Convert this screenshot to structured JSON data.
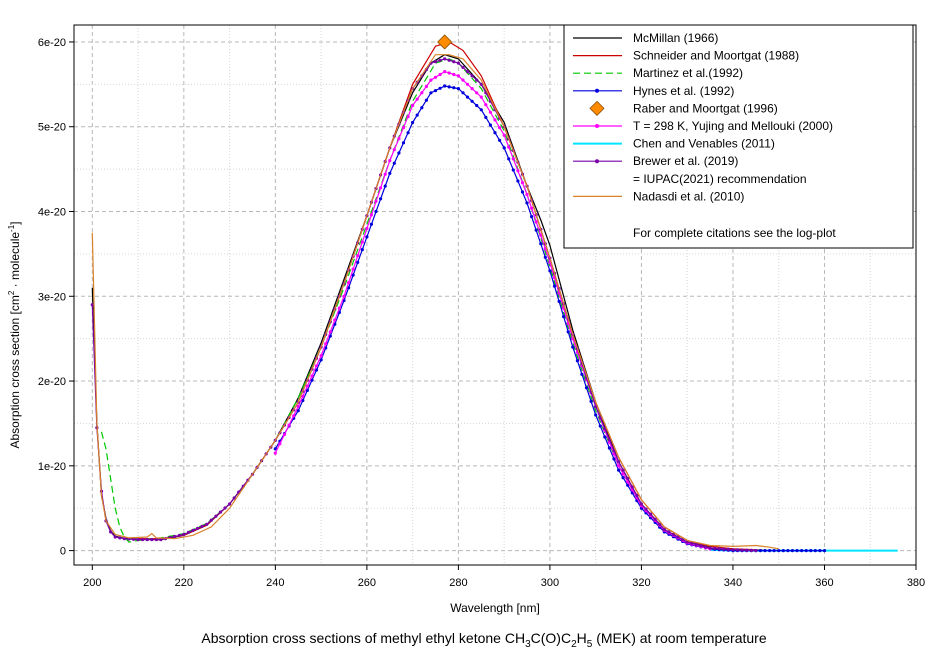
{
  "chart_data": {
    "type": "line",
    "title": "Absorption cross sections of methyl ethyl ketone CH3C(O)C2H5 (MEK) at room temperature",
    "title_parts": {
      "pre": "Absorption cross sections of methyl ethyl ketone CH",
      "s1": "3",
      "mid1": "C(O)C",
      "s2": "2",
      "mid2": "H",
      "s3": "5",
      "post": " (MEK) at room temperature"
    },
    "xlabel": "Wavelength [nm]",
    "ylabel": "Absorption cross section [cm2 · molecule-1]",
    "ylabel_parts": {
      "pre": "Absorption cross section [cm",
      "sup1": "2",
      "mid": " · molecule",
      "sup2": "-1",
      "post": "]"
    },
    "xlim": [
      196,
      380
    ],
    "ylim": [
      -1.7e-21,
      6.2e-20
    ],
    "x_ticks": [
      {
        "v": 200,
        "l": "200"
      },
      {
        "v": 220,
        "l": "220"
      },
      {
        "v": 240,
        "l": "240"
      },
      {
        "v": 260,
        "l": "260"
      },
      {
        "v": 280,
        "l": "280"
      },
      {
        "v": 300,
        "l": "300"
      },
      {
        "v": 320,
        "l": "320"
      },
      {
        "v": 340,
        "l": "340"
      },
      {
        "v": 360,
        "l": "360"
      },
      {
        "v": 380,
        "l": "380"
      }
    ],
    "y_ticks": [
      {
        "v": 0,
        "l": "0"
      },
      {
        "v": 1e-20,
        "l": "1e-20"
      },
      {
        "v": 2e-20,
        "l": "2e-20"
      },
      {
        "v": 3e-20,
        "l": "3e-20"
      },
      {
        "v": 4e-20,
        "l": "4e-20"
      },
      {
        "v": 5e-20,
        "l": "5e-20"
      },
      {
        "v": 6e-20,
        "l": "6e-20"
      }
    ],
    "grid": true,
    "legend_position": "top-right",
    "legend_note": "For complete citations see the log-plot",
    "series": [
      {
        "name": "McMillan (1966)",
        "color": "#000000",
        "style": "solid",
        "marker": "none",
        "points": [
          [
            200,
            3.1e-20
          ],
          [
            201,
            1.5e-20
          ],
          [
            202,
            6.5e-21
          ],
          [
            203,
            3.8e-21
          ],
          [
            204,
            2.3e-21
          ],
          [
            205,
            1.7e-21
          ],
          [
            207,
            1.45e-21
          ],
          [
            210,
            1.35e-21
          ],
          [
            215,
            1.3e-21
          ],
          [
            220,
            1.8e-21
          ],
          [
            225,
            3e-21
          ],
          [
            230,
            5.5e-21
          ],
          [
            235,
            9e-21
          ],
          [
            240,
            1.3e-20
          ],
          [
            245,
            1.8e-20
          ],
          [
            250,
            2.45e-20
          ],
          [
            255,
            3.2e-20
          ],
          [
            260,
            3.95e-20
          ],
          [
            265,
            4.75e-20
          ],
          [
            270,
            5.4e-20
          ],
          [
            274,
            5.75e-20
          ],
          [
            277,
            5.85e-20
          ],
          [
            280,
            5.8e-20
          ],
          [
            285,
            5.5e-20
          ],
          [
            290,
            5.05e-20
          ],
          [
            295,
            4.3e-20
          ],
          [
            298,
            3.9e-20
          ],
          [
            300,
            3.6e-20
          ],
          [
            305,
            2.6e-20
          ],
          [
            310,
            1.75e-20
          ],
          [
            315,
            1.05e-20
          ],
          [
            320,
            5.5e-21
          ],
          [
            325,
            2.5e-21
          ],
          [
            330,
            1e-21
          ],
          [
            335,
            4e-22
          ]
        ]
      },
      {
        "name": "Schneider and Moortgat (1988)",
        "color": "#cc0000",
        "style": "solid",
        "marker": "none",
        "points": [
          [
            210,
            1.4e-21
          ],
          [
            215,
            1.4e-21
          ],
          [
            220,
            1.8e-21
          ],
          [
            225,
            3e-21
          ],
          [
            230,
            5.5e-21
          ],
          [
            235,
            9e-21
          ],
          [
            240,
            1.3e-20
          ],
          [
            245,
            1.75e-20
          ],
          [
            250,
            2.4e-20
          ],
          [
            255,
            3.15e-20
          ],
          [
            260,
            3.95e-20
          ],
          [
            265,
            4.75e-20
          ],
          [
            270,
            5.5e-20
          ],
          [
            275,
            5.95e-20
          ],
          [
            278,
            6e-20
          ],
          [
            281,
            5.9e-20
          ],
          [
            285,
            5.6e-20
          ],
          [
            290,
            5e-20
          ],
          [
            295,
            4.3e-20
          ],
          [
            300,
            3.45e-20
          ],
          [
            305,
            2.55e-20
          ],
          [
            310,
            1.75e-20
          ],
          [
            315,
            1.1e-20
          ],
          [
            320,
            6e-21
          ],
          [
            325,
            2.8e-21
          ],
          [
            330,
            1.2e-21
          ],
          [
            335,
            5e-22
          ],
          [
            340,
            2e-22
          ],
          [
            345,
            1e-22
          ],
          [
            350,
            0
          ]
        ]
      },
      {
        "name": "Martinez et al.(1992)",
        "color": "#00c800",
        "style": "dashed",
        "marker": "none",
        "points": [
          [
            202,
            1.4e-20
          ],
          [
            203,
            1.2e-20
          ],
          [
            204,
            8.5e-21
          ],
          [
            205,
            5e-21
          ],
          [
            206,
            2.8e-21
          ],
          [
            207,
            1.6e-21
          ],
          [
            208,
            1e-21
          ],
          [
            210,
            1.2e-21
          ],
          [
            215,
            1.5e-21
          ],
          [
            220,
            2e-21
          ],
          [
            225,
            3.2e-21
          ],
          [
            230,
            5.5e-21
          ],
          [
            235,
            9e-21
          ],
          [
            240,
            1.3e-20
          ],
          [
            245,
            1.8e-20
          ],
          [
            250,
            2.4e-20
          ],
          [
            255,
            3.1e-20
          ],
          [
            260,
            3.85e-20
          ],
          [
            265,
            4.6e-20
          ],
          [
            270,
            5.3e-20
          ],
          [
            275,
            5.75e-20
          ],
          [
            278,
            5.8e-20
          ],
          [
            280,
            5.75e-20
          ],
          [
            285,
            5.45e-20
          ],
          [
            290,
            4.95e-20
          ],
          [
            295,
            4.2e-20
          ],
          [
            300,
            3.35e-20
          ],
          [
            305,
            2.45e-20
          ],
          [
            310,
            1.65e-20
          ],
          [
            315,
            1e-20
          ],
          [
            320,
            5.5e-21
          ],
          [
            325,
            2.5e-21
          ],
          [
            330,
            1e-21
          ],
          [
            335,
            3e-22
          ]
        ]
      },
      {
        "name": "Hynes et al. (1992)",
        "color": "#0000dd",
        "style": "solid",
        "marker": "dot",
        "x_start": 240,
        "x_end": 360,
        "x_step": 1,
        "points": [
          [
            240,
            1.2e-20
          ],
          [
            245,
            1.65e-20
          ],
          [
            250,
            2.25e-20
          ],
          [
            255,
            2.95e-20
          ],
          [
            260,
            3.7e-20
          ],
          [
            265,
            4.45e-20
          ],
          [
            270,
            5.05e-20
          ],
          [
            274,
            5.4e-20
          ],
          [
            277,
            5.48e-20
          ],
          [
            280,
            5.45e-20
          ],
          [
            285,
            5.2e-20
          ],
          [
            290,
            4.75e-20
          ],
          [
            295,
            4.1e-20
          ],
          [
            300,
            3.3e-20
          ],
          [
            305,
            2.4e-20
          ],
          [
            310,
            1.6e-20
          ],
          [
            315,
            9.5e-21
          ],
          [
            320,
            5e-21
          ],
          [
            325,
            2.2e-21
          ],
          [
            330,
            8e-22
          ],
          [
            335,
            2e-22
          ],
          [
            340,
            0
          ],
          [
            360,
            0
          ]
        ]
      },
      {
        "name": "Raber and Moortgat (1996)",
        "color": "#ff8c00",
        "style": "none",
        "marker": "diamond",
        "points": [
          [
            277,
            6e-20
          ]
        ]
      },
      {
        "name": "T = 298 K, Yujing and Mellouki (2000)",
        "color": "#ff00ff",
        "style": "solid",
        "marker": "dot",
        "x_start": 240,
        "x_end": 335,
        "x_step": 1,
        "points": [
          [
            240,
            1.15e-20
          ],
          [
            245,
            1.7e-20
          ],
          [
            250,
            2.3e-20
          ],
          [
            255,
            3e-20
          ],
          [
            260,
            3.8e-20
          ],
          [
            265,
            4.6e-20
          ],
          [
            270,
            5.25e-20
          ],
          [
            274,
            5.55e-20
          ],
          [
            277,
            5.65e-20
          ],
          [
            280,
            5.6e-20
          ],
          [
            285,
            5.35e-20
          ],
          [
            290,
            4.9e-20
          ],
          [
            295,
            4.2e-20
          ],
          [
            300,
            3.4e-20
          ],
          [
            305,
            2.5e-20
          ],
          [
            310,
            1.7e-20
          ],
          [
            315,
            1e-20
          ],
          [
            320,
            5.3e-21
          ],
          [
            325,
            2.4e-21
          ],
          [
            330,
            9e-22
          ],
          [
            335,
            2e-22
          ]
        ]
      },
      {
        "name": "Chen and Venables (2011)",
        "color": "#00e5ff",
        "style": "solid",
        "marker": "none",
        "points": [
          [
            335,
            1e-22
          ],
          [
            340,
            0
          ],
          [
            350,
            0
          ],
          [
            360,
            0
          ],
          [
            370,
            0
          ],
          [
            376,
            0
          ]
        ]
      },
      {
        "name": "Brewer et al. (2019)",
        "color": "#7a00a8",
        "style": "solid",
        "marker": "dot",
        "legend_extra": " = IUPAC(2021) recommendation",
        "x_start": 200,
        "x_end": 345,
        "x_step": 1,
        "points": [
          [
            200,
            2.9e-20
          ],
          [
            201,
            1.45e-20
          ],
          [
            202,
            7e-21
          ],
          [
            203,
            3.5e-21
          ],
          [
            204,
            2.2e-21
          ],
          [
            205,
            1.6e-21
          ],
          [
            207,
            1.4e-21
          ],
          [
            210,
            1.3e-21
          ],
          [
            215,
            1.3e-21
          ],
          [
            220,
            1.9e-21
          ],
          [
            225,
            3.1e-21
          ],
          [
            230,
            5.5e-21
          ],
          [
            235,
            9e-21
          ],
          [
            240,
            1.3e-20
          ],
          [
            245,
            1.75e-20
          ],
          [
            250,
            2.4e-20
          ],
          [
            255,
            3.15e-20
          ],
          [
            260,
            3.95e-20
          ],
          [
            265,
            4.75e-20
          ],
          [
            270,
            5.45e-20
          ],
          [
            274,
            5.75e-20
          ],
          [
            277,
            5.8e-20
          ],
          [
            280,
            5.75e-20
          ],
          [
            285,
            5.5e-20
          ],
          [
            290,
            5e-20
          ],
          [
            295,
            4.3e-20
          ],
          [
            300,
            3.45e-20
          ],
          [
            305,
            2.55e-20
          ],
          [
            310,
            1.7e-20
          ],
          [
            315,
            1.05e-20
          ],
          [
            320,
            5.5e-21
          ],
          [
            325,
            2.5e-21
          ],
          [
            330,
            1e-21
          ],
          [
            335,
            3e-22
          ],
          [
            340,
            1e-22
          ],
          [
            345,
            0
          ]
        ]
      },
      {
        "name": "Nadasdi et al. (2010)",
        "color": "#d9822b",
        "style": "solid",
        "marker": "none",
        "points": [
          [
            200,
            3.75e-20
          ],
          [
            201,
            1.5e-20
          ],
          [
            202,
            6.5e-21
          ],
          [
            203,
            3.5e-21
          ],
          [
            205,
            1.9e-21
          ],
          [
            208,
            1.5e-21
          ],
          [
            212,
            1.6e-21
          ],
          [
            213,
            2e-21
          ],
          [
            214,
            1.5e-21
          ],
          [
            218,
            1.4e-21
          ],
          [
            222,
            1.8e-21
          ],
          [
            226,
            2.8e-21
          ],
          [
            230,
            5e-21
          ],
          [
            235,
            9e-21
          ],
          [
            240,
            1.3e-20
          ],
          [
            245,
            1.75e-20
          ],
          [
            250,
            2.4e-20
          ],
          [
            255,
            3.15e-20
          ],
          [
            260,
            3.95e-20
          ],
          [
            265,
            4.75e-20
          ],
          [
            270,
            5.45e-20
          ],
          [
            275,
            5.85e-20
          ],
          [
            278,
            5.85e-20
          ],
          [
            281,
            5.8e-20
          ],
          [
            285,
            5.55e-20
          ],
          [
            290,
            5e-20
          ],
          [
            295,
            4.3e-20
          ],
          [
            300,
            3.45e-20
          ],
          [
            305,
            2.55e-20
          ],
          [
            310,
            1.75e-20
          ],
          [
            315,
            1.1e-20
          ],
          [
            320,
            6e-21
          ],
          [
            325,
            2.8e-21
          ],
          [
            330,
            1.2e-21
          ],
          [
            335,
            6e-22
          ],
          [
            340,
            5e-22
          ],
          [
            345,
            6e-22
          ],
          [
            348,
            4e-22
          ],
          [
            350,
            2e-22
          ]
        ]
      }
    ]
  }
}
